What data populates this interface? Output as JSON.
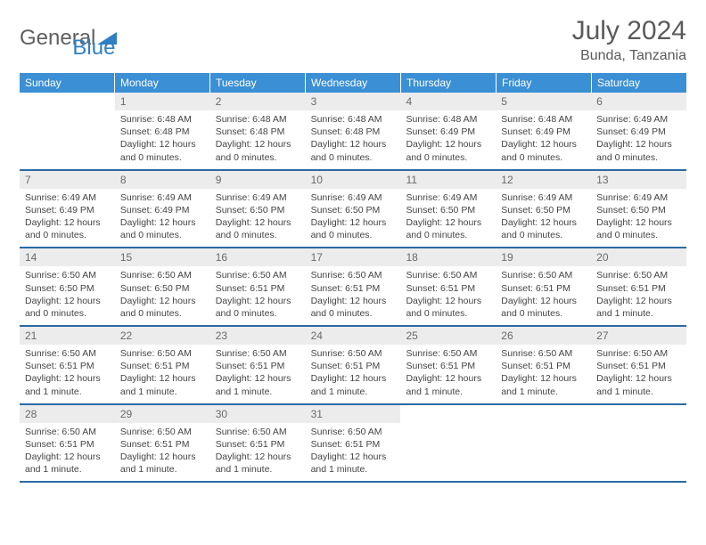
{
  "brand": {
    "word1": "General",
    "word2": "Blue"
  },
  "title": "July 2024",
  "location": "Bunda, Tanzania",
  "colors": {
    "header_bg": "#3b8fd4",
    "header_text": "#ffffff",
    "week_border": "#2b6aa3",
    "daynum_bg": "#ececec",
    "brand_gray": "#5f5f5f",
    "brand_blue": "#2f7fc2"
  },
  "dow": [
    "Sunday",
    "Monday",
    "Tuesday",
    "Wednesday",
    "Thursday",
    "Friday",
    "Saturday"
  ],
  "weeks": [
    [
      {
        "n": "",
        "sr": "",
        "ss": "",
        "dl": ""
      },
      {
        "n": "1",
        "sr": "Sunrise: 6:48 AM",
        "ss": "Sunset: 6:48 PM",
        "dl": "Daylight: 12 hours and 0 minutes."
      },
      {
        "n": "2",
        "sr": "Sunrise: 6:48 AM",
        "ss": "Sunset: 6:48 PM",
        "dl": "Daylight: 12 hours and 0 minutes."
      },
      {
        "n": "3",
        "sr": "Sunrise: 6:48 AM",
        "ss": "Sunset: 6:48 PM",
        "dl": "Daylight: 12 hours and 0 minutes."
      },
      {
        "n": "4",
        "sr": "Sunrise: 6:48 AM",
        "ss": "Sunset: 6:49 PM",
        "dl": "Daylight: 12 hours and 0 minutes."
      },
      {
        "n": "5",
        "sr": "Sunrise: 6:48 AM",
        "ss": "Sunset: 6:49 PM",
        "dl": "Daylight: 12 hours and 0 minutes."
      },
      {
        "n": "6",
        "sr": "Sunrise: 6:49 AM",
        "ss": "Sunset: 6:49 PM",
        "dl": "Daylight: 12 hours and 0 minutes."
      }
    ],
    [
      {
        "n": "7",
        "sr": "Sunrise: 6:49 AM",
        "ss": "Sunset: 6:49 PM",
        "dl": "Daylight: 12 hours and 0 minutes."
      },
      {
        "n": "8",
        "sr": "Sunrise: 6:49 AM",
        "ss": "Sunset: 6:49 PM",
        "dl": "Daylight: 12 hours and 0 minutes."
      },
      {
        "n": "9",
        "sr": "Sunrise: 6:49 AM",
        "ss": "Sunset: 6:50 PM",
        "dl": "Daylight: 12 hours and 0 minutes."
      },
      {
        "n": "10",
        "sr": "Sunrise: 6:49 AM",
        "ss": "Sunset: 6:50 PM",
        "dl": "Daylight: 12 hours and 0 minutes."
      },
      {
        "n": "11",
        "sr": "Sunrise: 6:49 AM",
        "ss": "Sunset: 6:50 PM",
        "dl": "Daylight: 12 hours and 0 minutes."
      },
      {
        "n": "12",
        "sr": "Sunrise: 6:49 AM",
        "ss": "Sunset: 6:50 PM",
        "dl": "Daylight: 12 hours and 0 minutes."
      },
      {
        "n": "13",
        "sr": "Sunrise: 6:49 AM",
        "ss": "Sunset: 6:50 PM",
        "dl": "Daylight: 12 hours and 0 minutes."
      }
    ],
    [
      {
        "n": "14",
        "sr": "Sunrise: 6:50 AM",
        "ss": "Sunset: 6:50 PM",
        "dl": "Daylight: 12 hours and 0 minutes."
      },
      {
        "n": "15",
        "sr": "Sunrise: 6:50 AM",
        "ss": "Sunset: 6:50 PM",
        "dl": "Daylight: 12 hours and 0 minutes."
      },
      {
        "n": "16",
        "sr": "Sunrise: 6:50 AM",
        "ss": "Sunset: 6:51 PM",
        "dl": "Daylight: 12 hours and 0 minutes."
      },
      {
        "n": "17",
        "sr": "Sunrise: 6:50 AM",
        "ss": "Sunset: 6:51 PM",
        "dl": "Daylight: 12 hours and 0 minutes."
      },
      {
        "n": "18",
        "sr": "Sunrise: 6:50 AM",
        "ss": "Sunset: 6:51 PM",
        "dl": "Daylight: 12 hours and 0 minutes."
      },
      {
        "n": "19",
        "sr": "Sunrise: 6:50 AM",
        "ss": "Sunset: 6:51 PM",
        "dl": "Daylight: 12 hours and 0 minutes."
      },
      {
        "n": "20",
        "sr": "Sunrise: 6:50 AM",
        "ss": "Sunset: 6:51 PM",
        "dl": "Daylight: 12 hours and 1 minute."
      }
    ],
    [
      {
        "n": "21",
        "sr": "Sunrise: 6:50 AM",
        "ss": "Sunset: 6:51 PM",
        "dl": "Daylight: 12 hours and 1 minute."
      },
      {
        "n": "22",
        "sr": "Sunrise: 6:50 AM",
        "ss": "Sunset: 6:51 PM",
        "dl": "Daylight: 12 hours and 1 minute."
      },
      {
        "n": "23",
        "sr": "Sunrise: 6:50 AM",
        "ss": "Sunset: 6:51 PM",
        "dl": "Daylight: 12 hours and 1 minute."
      },
      {
        "n": "24",
        "sr": "Sunrise: 6:50 AM",
        "ss": "Sunset: 6:51 PM",
        "dl": "Daylight: 12 hours and 1 minute."
      },
      {
        "n": "25",
        "sr": "Sunrise: 6:50 AM",
        "ss": "Sunset: 6:51 PM",
        "dl": "Daylight: 12 hours and 1 minute."
      },
      {
        "n": "26",
        "sr": "Sunrise: 6:50 AM",
        "ss": "Sunset: 6:51 PM",
        "dl": "Daylight: 12 hours and 1 minute."
      },
      {
        "n": "27",
        "sr": "Sunrise: 6:50 AM",
        "ss": "Sunset: 6:51 PM",
        "dl": "Daylight: 12 hours and 1 minute."
      }
    ],
    [
      {
        "n": "28",
        "sr": "Sunrise: 6:50 AM",
        "ss": "Sunset: 6:51 PM",
        "dl": "Daylight: 12 hours and 1 minute."
      },
      {
        "n": "29",
        "sr": "Sunrise: 6:50 AM",
        "ss": "Sunset: 6:51 PM",
        "dl": "Daylight: 12 hours and 1 minute."
      },
      {
        "n": "30",
        "sr": "Sunrise: 6:50 AM",
        "ss": "Sunset: 6:51 PM",
        "dl": "Daylight: 12 hours and 1 minute."
      },
      {
        "n": "31",
        "sr": "Sunrise: 6:50 AM",
        "ss": "Sunset: 6:51 PM",
        "dl": "Daylight: 12 hours and 1 minute."
      },
      {
        "n": "",
        "sr": "",
        "ss": "",
        "dl": ""
      },
      {
        "n": "",
        "sr": "",
        "ss": "",
        "dl": ""
      },
      {
        "n": "",
        "sr": "",
        "ss": "",
        "dl": ""
      }
    ]
  ]
}
